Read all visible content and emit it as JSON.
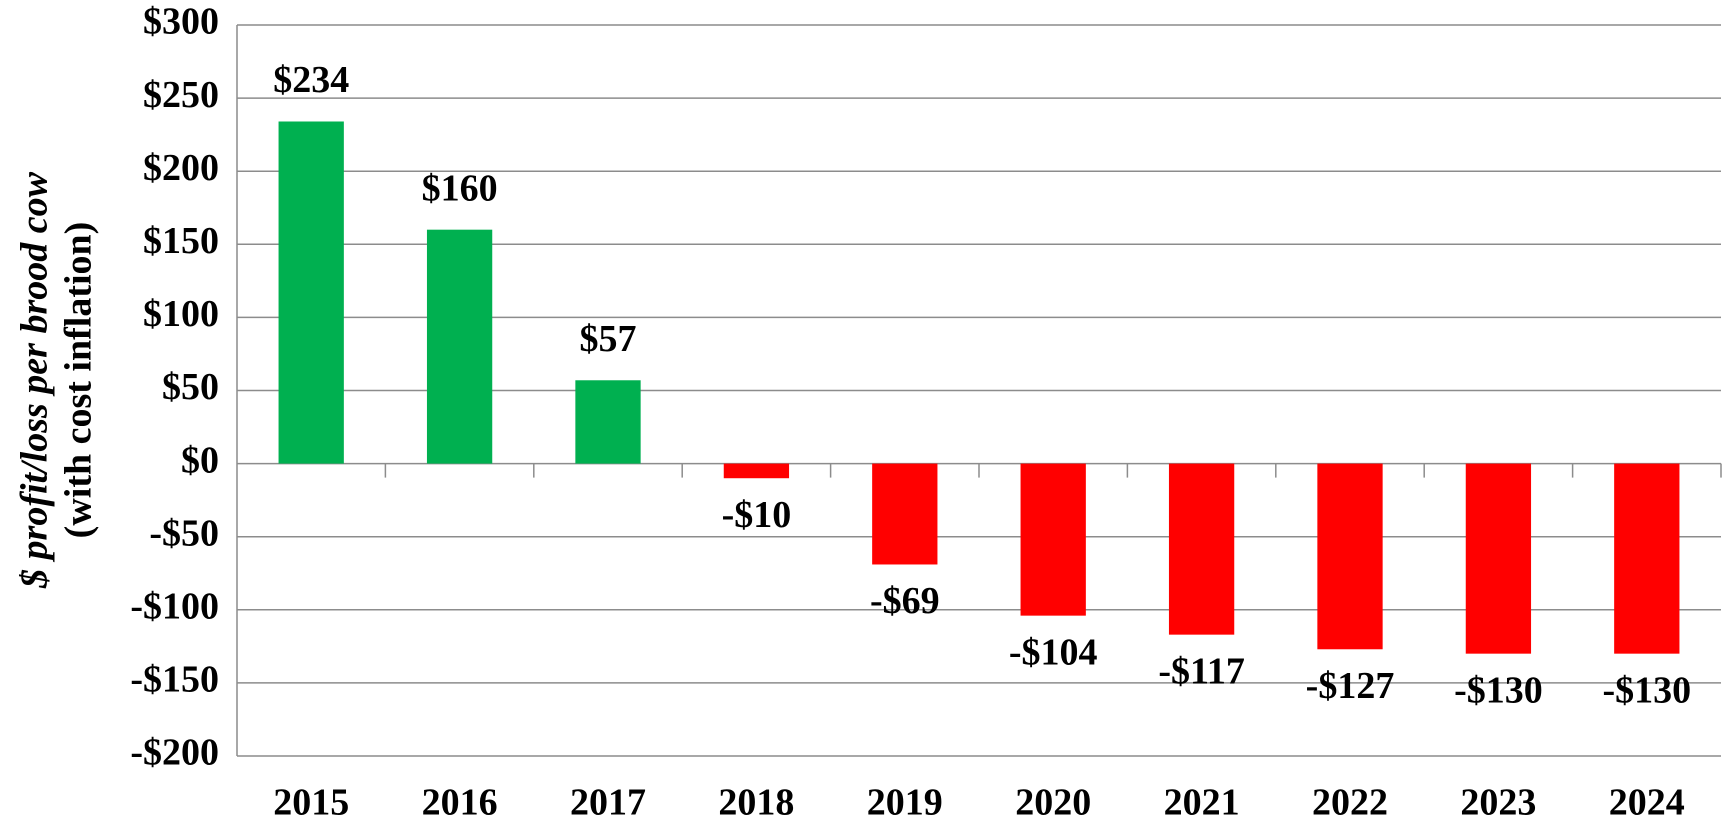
{
  "chart_data": {
    "type": "bar",
    "ylabel": [
      "$ profit/loss per brood cow",
      "(with cost inflation)"
    ],
    "categories": [
      "2015",
      "2016",
      "2017",
      "2018",
      "2019",
      "2020",
      "2021",
      "2022",
      "2023",
      "2024"
    ],
    "values": [
      234,
      160,
      57,
      -10,
      -69,
      -104,
      -117,
      -127,
      -130,
      -130
    ],
    "value_labels": [
      "$234",
      "$160",
      "$57",
      "-$10",
      "-$69",
      "-$104",
      "-$117",
      "-$127",
      "-$130",
      "-$130"
    ],
    "colors": [
      "#00b050",
      "#00b050",
      "#00b050",
      "#ff0000",
      "#ff0000",
      "#ff0000",
      "#ff0000",
      "#ff0000",
      "#ff0000",
      "#ff0000"
    ],
    "ylim": [
      -200,
      300
    ],
    "yticks": [
      {
        "value": -200,
        "label": "-$200"
      },
      {
        "value": -150,
        "label": "-$150"
      },
      {
        "value": -100,
        "label": "-$100"
      },
      {
        "value": -50,
        "label": "-$50"
      },
      {
        "value": 0,
        "label": "$0"
      },
      {
        "value": 50,
        "label": "$50"
      },
      {
        "value": 100,
        "label": "$100"
      },
      {
        "value": 150,
        "label": "$150"
      },
      {
        "value": 200,
        "label": "$200"
      },
      {
        "value": 250,
        "label": "$250"
      },
      {
        "value": 300,
        "label": "$300"
      }
    ],
    "grid": true
  }
}
